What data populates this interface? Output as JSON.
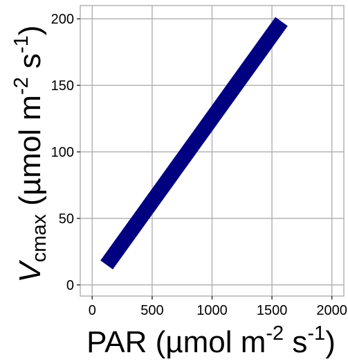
{
  "chart_data": {
    "type": "line",
    "xlabel": {
      "prefix": "PAR (µmol m",
      "sup1": "-2",
      "mid": " s",
      "sup2": "-1",
      "suffix": ")"
    },
    "ylabel": {
      "symbol": "V",
      "subscript": "cmax",
      "prefix": " (µmol m",
      "sup1": "-2",
      "mid": " s",
      "sup2": "-1",
      "suffix": ")"
    },
    "xlim": [
      -100,
      2100
    ],
    "ylim": [
      -8.4,
      210
    ],
    "xticks": [
      0,
      500,
      1000,
      1500,
      2000
    ],
    "xtick_labels": [
      "0",
      "500",
      "1000",
      "1500",
      "2000"
    ],
    "yticks": [
      0,
      50,
      100,
      150,
      200
    ],
    "ytick_labels": [
      "0",
      "50",
      "100",
      "150",
      "200"
    ],
    "grid": true,
    "series": [
      {
        "x": [
          120,
          1580
        ],
        "y": [
          15,
          198
        ],
        "color": "#000080"
      }
    ]
  }
}
